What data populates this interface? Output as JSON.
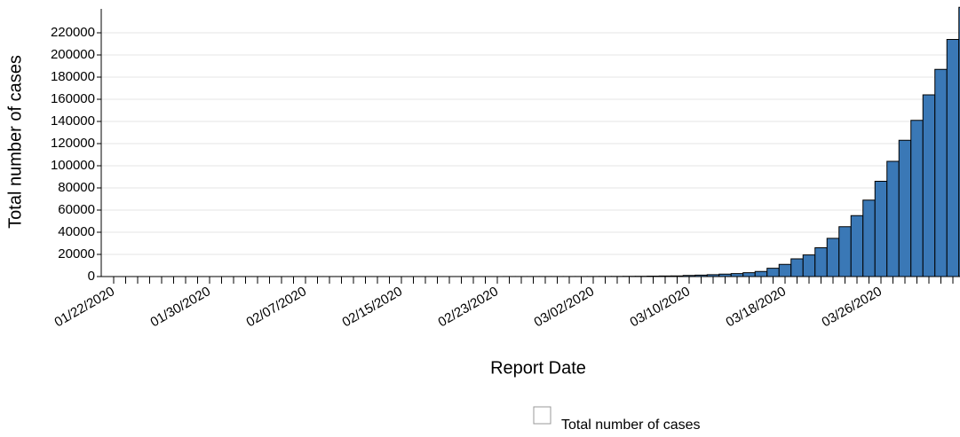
{
  "chart_data": {
    "type": "bar",
    "x_label": "Report Date",
    "y_label": "Total number of cases",
    "categories": [
      "01/22/2020",
      null,
      null,
      null,
      null,
      null,
      null,
      null,
      "01/30/2020",
      null,
      null,
      null,
      null,
      null,
      null,
      null,
      "02/07/2020",
      null,
      null,
      null,
      null,
      null,
      null,
      null,
      "02/15/2020",
      null,
      null,
      null,
      null,
      null,
      null,
      null,
      "02/23/2020",
      null,
      null,
      null,
      null,
      null,
      null,
      null,
      "03/02/2020",
      null,
      null,
      null,
      null,
      null,
      null,
      null,
      "03/10/2020",
      null,
      null,
      null,
      null,
      null,
      null,
      null,
      "03/18/2020",
      null,
      null,
      null,
      null,
      null,
      null,
      null,
      "03/26/2020",
      null,
      null,
      null,
      null,
      null,
      null,
      null
    ],
    "series": [
      {
        "name": "Total number of cases",
        "color": "#3a78b6",
        "values": [
          1,
          1,
          2,
          2,
          5,
          5,
          5,
          5,
          5,
          7,
          8,
          8,
          11,
          11,
          11,
          11,
          11,
          11,
          11,
          11,
          12,
          12,
          13,
          13,
          13,
          13,
          13,
          13,
          13,
          13,
          15,
          15,
          15,
          51,
          51,
          57,
          58,
          60,
          68,
          74,
          98,
          118,
          149,
          217,
          262,
          402,
          518,
          583,
          1000,
          1300,
          1700,
          2200,
          2700,
          3500,
          4600,
          7500,
          11000,
          16000,
          19500,
          26000,
          34500,
          45000,
          55000,
          69000,
          86000,
          104000,
          123000,
          141000,
          164000,
          187000,
          214000,
          243000
        ]
      }
    ],
    "ylim": [
      0,
      240000
    ],
    "yticks": [
      0,
      20000,
      40000,
      60000,
      80000,
      100000,
      120000,
      140000,
      160000,
      180000,
      200000,
      220000
    ],
    "grid": true
  }
}
